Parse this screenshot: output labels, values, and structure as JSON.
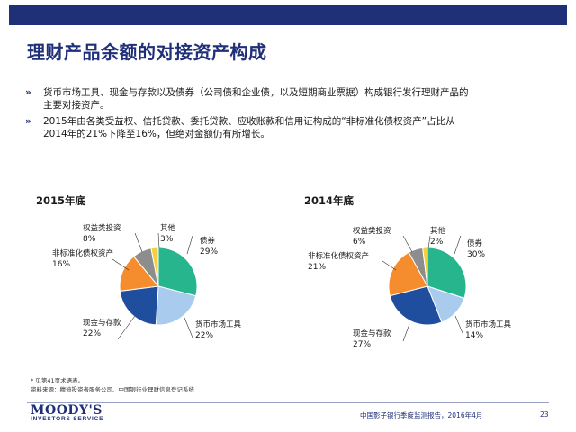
{
  "header": {
    "title": "理财产品余额的对接资产构成"
  },
  "bullets": [
    {
      "marker": "»",
      "text_lines": [
        "货币市场工具、现金与存款以及债券（公司债和企业债，以及短期商业票据）构成银行发行理财产品的",
        "主要对接资产。"
      ]
    },
    {
      "marker": "»",
      "text_lines": [
        "2015年由各类受益权、信托贷款、委托贷款、应收账款和信用证构成的“非标准化债权资产”占比从",
        "2014年的21%下降至16%，但绝对金额仍有所增长。"
      ]
    }
  ],
  "chart_data": [
    {
      "type": "pie",
      "title": "2015年底",
      "slices": [
        {
          "label": "债券",
          "value": 29,
          "value_text": "29%",
          "color": "#26b58d"
        },
        {
          "label": "货币市场工具",
          "value": 22,
          "value_text": "22%",
          "color": "#a9cbee"
        },
        {
          "label": "现金与存款",
          "value": 22,
          "value_text": "22%",
          "color": "#1f4e9e"
        },
        {
          "label": "非标准化债权资产",
          "value": 16,
          "value_text": "16%",
          "color": "#f58d2f"
        },
        {
          "label": "权益类投资",
          "value": 8,
          "value_text": "8%",
          "color": "#8d8d8d"
        },
        {
          "label": "其他",
          "value": 3,
          "value_text": "3%",
          "color": "#f4d03f"
        }
      ]
    },
    {
      "type": "pie",
      "title": "2014年底",
      "slices": [
        {
          "label": "债券",
          "value": 30,
          "value_text": "30%",
          "color": "#26b58d"
        },
        {
          "label": "货币市场工具",
          "value": 14,
          "value_text": "14%",
          "color": "#a9cbee"
        },
        {
          "label": "现金与存款",
          "value": 27,
          "value_text": "27%",
          "color": "#1f4e9e"
        },
        {
          "label": "非标准化债权资产",
          "value": 21,
          "value_text": "21%",
          "color": "#f58d2f"
        },
        {
          "label": "权益类投资",
          "value": 6,
          "value_text": "6%",
          "color": "#8d8d8d"
        },
        {
          "label": "其他",
          "value": 2,
          "value_text": "2%",
          "color": "#f4d03f"
        }
      ]
    }
  ],
  "footnotes": {
    "line1": "* 见第41页术语表。",
    "line2": "资料来源：穆迪投资者服务公司、中国银行业理财信息登记系统"
  },
  "footer": {
    "logo_main": "MOODY'S",
    "logo_sub": "INVESTORS SERVICE",
    "report": "中国影子银行季度监测报告，2016年4月",
    "page": "23"
  }
}
